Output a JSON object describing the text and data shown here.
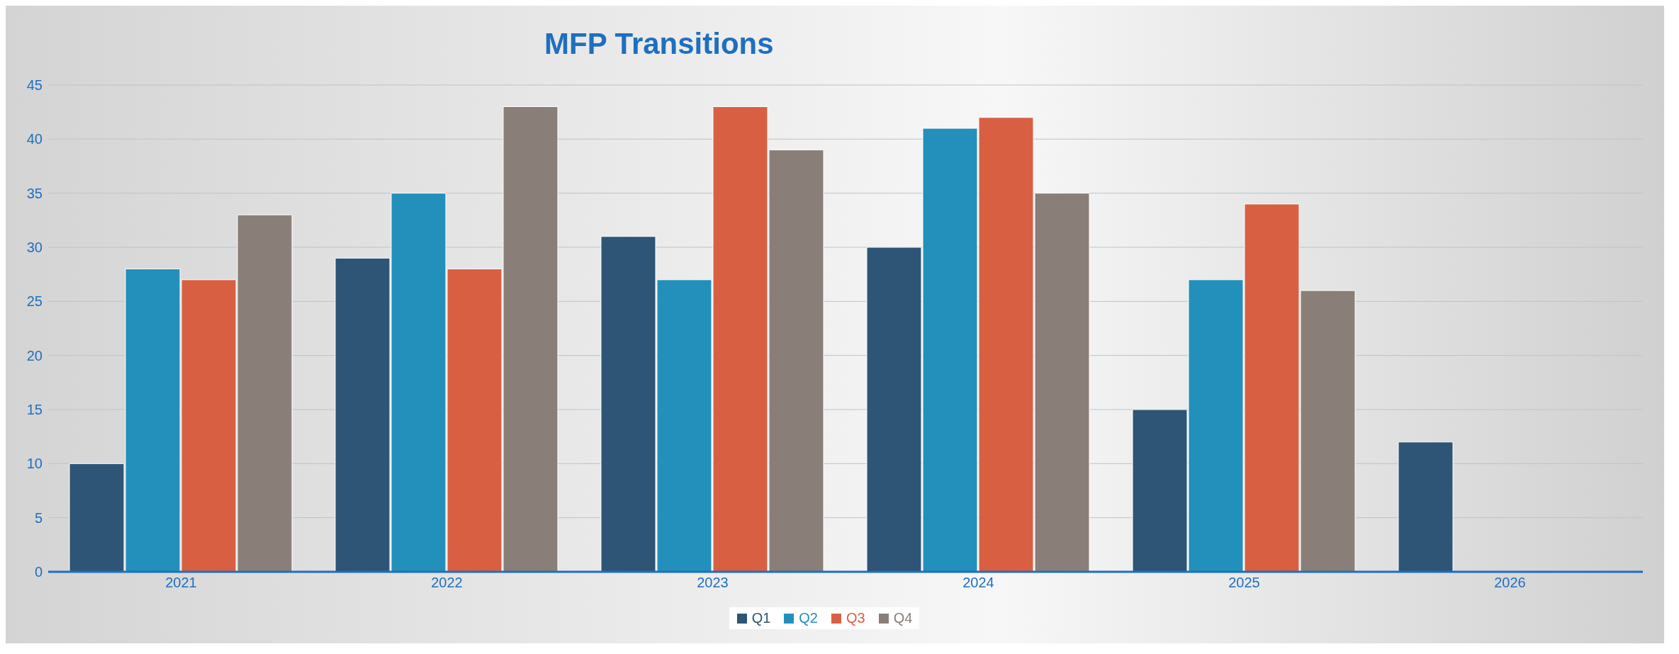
{
  "chart_data": {
    "type": "bar",
    "title": "MFP Transitions",
    "categories": [
      "2021",
      "2022",
      "2023",
      "2024",
      "2025",
      "2026"
    ],
    "series": [
      {
        "name": "Q1",
        "color": "#2e5575",
        "values": [
          10,
          29,
          31,
          30,
          15,
          12
        ]
      },
      {
        "name": "Q2",
        "color": "#2390bb",
        "values": [
          28,
          35,
          27,
          41,
          27,
          null
        ]
      },
      {
        "name": "Q3",
        "color": "#d95f43",
        "values": [
          27,
          28,
          43,
          42,
          34,
          null
        ]
      },
      {
        "name": "Q4",
        "color": "#8a7f78",
        "values": [
          33,
          43,
          39,
          35,
          26,
          null
        ]
      }
    ],
    "ylim": [
      0,
      45
    ],
    "yticks": [
      0,
      5,
      10,
      15,
      20,
      25,
      30,
      35,
      40,
      45
    ],
    "grid": "y",
    "legend": "bottom"
  }
}
